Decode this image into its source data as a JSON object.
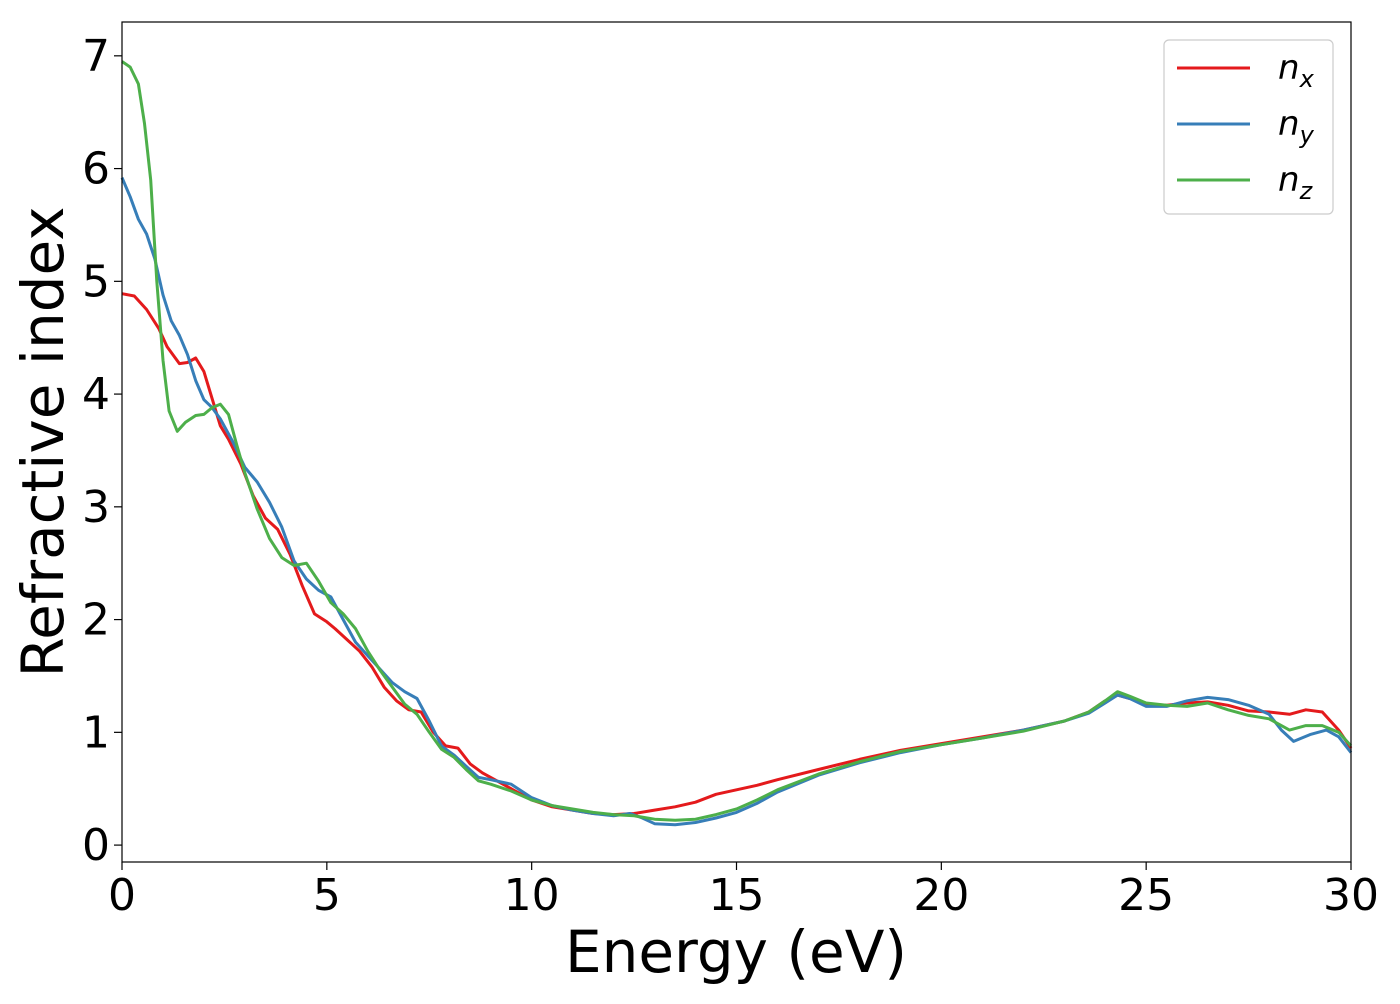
{
  "chart_data": {
    "type": "line",
    "xlabel": "Energy (eV)",
    "ylabel": "Refractive index",
    "xlim": [
      0,
      30
    ],
    "ylim": [
      -0.15,
      7.3
    ],
    "x_ticks": [
      0,
      5,
      10,
      15,
      20,
      25,
      30
    ],
    "y_ticks": [
      0,
      1,
      2,
      3,
      4,
      5,
      6,
      7
    ],
    "x_tick_labels": [
      "0",
      "5",
      "10",
      "15",
      "20",
      "25",
      "30"
    ],
    "y_tick_labels": [
      "0",
      "1",
      "2",
      "3",
      "4",
      "5",
      "6",
      "7"
    ],
    "grid": false,
    "legend_position": "top-right",
    "series": [
      {
        "name": "n_x",
        "label_main": "n",
        "label_sub": "x",
        "color": "#e41a1c",
        "points": [
          [
            0,
            4.89
          ],
          [
            0.3,
            4.87
          ],
          [
            0.6,
            4.75
          ],
          [
            0.9,
            4.58
          ],
          [
            1.1,
            4.42
          ],
          [
            1.4,
            4.27
          ],
          [
            1.6,
            4.28
          ],
          [
            1.8,
            4.32
          ],
          [
            2.0,
            4.2
          ],
          [
            2.2,
            3.96
          ],
          [
            2.4,
            3.72
          ],
          [
            2.6,
            3.6
          ],
          [
            2.9,
            3.38
          ],
          [
            3.2,
            3.1
          ],
          [
            3.5,
            2.9
          ],
          [
            3.8,
            2.8
          ],
          [
            4.1,
            2.58
          ],
          [
            4.4,
            2.3
          ],
          [
            4.7,
            2.05
          ],
          [
            5.0,
            1.98
          ],
          [
            5.2,
            1.92
          ],
          [
            5.5,
            1.82
          ],
          [
            5.8,
            1.72
          ],
          [
            6.1,
            1.58
          ],
          [
            6.4,
            1.4
          ],
          [
            6.7,
            1.28
          ],
          [
            7.0,
            1.2
          ],
          [
            7.3,
            1.18
          ],
          [
            7.6,
            1.0
          ],
          [
            7.9,
            0.88
          ],
          [
            8.2,
            0.86
          ],
          [
            8.5,
            0.72
          ],
          [
            8.8,
            0.64
          ],
          [
            9.2,
            0.56
          ],
          [
            9.6,
            0.48
          ],
          [
            10.0,
            0.4
          ],
          [
            10.5,
            0.34
          ],
          [
            11.0,
            0.31
          ],
          [
            11.5,
            0.28
          ],
          [
            12.0,
            0.27
          ],
          [
            12.5,
            0.28
          ],
          [
            13.0,
            0.31
          ],
          [
            13.5,
            0.34
          ],
          [
            14.0,
            0.38
          ],
          [
            14.5,
            0.45
          ],
          [
            15.0,
            0.49
          ],
          [
            15.5,
            0.53
          ],
          [
            16.0,
            0.58
          ],
          [
            17.0,
            0.67
          ],
          [
            18.0,
            0.76
          ],
          [
            19.0,
            0.84
          ],
          [
            20.0,
            0.9
          ],
          [
            21.0,
            0.96
          ],
          [
            22.0,
            1.02
          ],
          [
            23.0,
            1.1
          ],
          [
            23.6,
            1.18
          ],
          [
            24.0,
            1.28
          ],
          [
            24.3,
            1.33
          ],
          [
            24.6,
            1.3
          ],
          [
            25.0,
            1.25
          ],
          [
            25.5,
            1.24
          ],
          [
            26.0,
            1.26
          ],
          [
            26.5,
            1.27
          ],
          [
            27.0,
            1.24
          ],
          [
            27.5,
            1.19
          ],
          [
            28.0,
            1.18
          ],
          [
            28.5,
            1.16
          ],
          [
            28.9,
            1.2
          ],
          [
            29.3,
            1.18
          ],
          [
            29.7,
            1.02
          ],
          [
            30.0,
            0.86
          ]
        ]
      },
      {
        "name": "n_y",
        "label_main": "n",
        "label_sub": "y",
        "color": "#377eb8",
        "points": [
          [
            0,
            5.92
          ],
          [
            0.2,
            5.75
          ],
          [
            0.4,
            5.55
          ],
          [
            0.6,
            5.42
          ],
          [
            0.8,
            5.2
          ],
          [
            1.0,
            4.88
          ],
          [
            1.2,
            4.65
          ],
          [
            1.4,
            4.52
          ],
          [
            1.6,
            4.35
          ],
          [
            1.8,
            4.12
          ],
          [
            2.0,
            3.95
          ],
          [
            2.2,
            3.88
          ],
          [
            2.4,
            3.78
          ],
          [
            2.7,
            3.58
          ],
          [
            3.0,
            3.35
          ],
          [
            3.3,
            3.22
          ],
          [
            3.6,
            3.04
          ],
          [
            3.9,
            2.82
          ],
          [
            4.2,
            2.52
          ],
          [
            4.5,
            2.36
          ],
          [
            4.8,
            2.26
          ],
          [
            5.1,
            2.2
          ],
          [
            5.4,
            2.0
          ],
          [
            5.7,
            1.8
          ],
          [
            6.0,
            1.68
          ],
          [
            6.3,
            1.56
          ],
          [
            6.6,
            1.44
          ],
          [
            6.9,
            1.36
          ],
          [
            7.2,
            1.3
          ],
          [
            7.5,
            1.1
          ],
          [
            7.8,
            0.88
          ],
          [
            8.1,
            0.8
          ],
          [
            8.4,
            0.7
          ],
          [
            8.7,
            0.6
          ],
          [
            9.0,
            0.58
          ],
          [
            9.5,
            0.54
          ],
          [
            10.0,
            0.42
          ],
          [
            10.5,
            0.35
          ],
          [
            11.0,
            0.31
          ],
          [
            11.5,
            0.28
          ],
          [
            12.0,
            0.26
          ],
          [
            12.4,
            0.28
          ],
          [
            12.7,
            0.24
          ],
          [
            13.0,
            0.19
          ],
          [
            13.5,
            0.18
          ],
          [
            14.0,
            0.2
          ],
          [
            14.5,
            0.24
          ],
          [
            15.0,
            0.29
          ],
          [
            15.5,
            0.37
          ],
          [
            16.0,
            0.47
          ],
          [
            17.0,
            0.62
          ],
          [
            18.0,
            0.73
          ],
          [
            19.0,
            0.82
          ],
          [
            20.0,
            0.89
          ],
          [
            21.0,
            0.95
          ],
          [
            22.0,
            1.02
          ],
          [
            23.0,
            1.1
          ],
          [
            23.6,
            1.17
          ],
          [
            24.0,
            1.26
          ],
          [
            24.3,
            1.33
          ],
          [
            24.6,
            1.3
          ],
          [
            25.0,
            1.23
          ],
          [
            25.5,
            1.23
          ],
          [
            26.0,
            1.28
          ],
          [
            26.5,
            1.31
          ],
          [
            27.0,
            1.29
          ],
          [
            27.5,
            1.24
          ],
          [
            28.0,
            1.16
          ],
          [
            28.3,
            1.02
          ],
          [
            28.6,
            0.92
          ],
          [
            29.0,
            0.98
          ],
          [
            29.4,
            1.02
          ],
          [
            29.7,
            0.96
          ],
          [
            30.0,
            0.82
          ]
        ]
      },
      {
        "name": "n_z",
        "label_main": "n",
        "label_sub": "z",
        "color": "#4daf4a",
        "points": [
          [
            0,
            6.95
          ],
          [
            0.2,
            6.9
          ],
          [
            0.4,
            6.75
          ],
          [
            0.55,
            6.4
          ],
          [
            0.7,
            5.9
          ],
          [
            0.85,
            5.0
          ],
          [
            1.0,
            4.3
          ],
          [
            1.15,
            3.85
          ],
          [
            1.35,
            3.67
          ],
          [
            1.55,
            3.75
          ],
          [
            1.8,
            3.81
          ],
          [
            2.0,
            3.82
          ],
          [
            2.2,
            3.88
          ],
          [
            2.4,
            3.91
          ],
          [
            2.6,
            3.82
          ],
          [
            2.8,
            3.55
          ],
          [
            3.0,
            3.3
          ],
          [
            3.3,
            2.98
          ],
          [
            3.6,
            2.72
          ],
          [
            3.9,
            2.55
          ],
          [
            4.2,
            2.48
          ],
          [
            4.5,
            2.5
          ],
          [
            4.8,
            2.34
          ],
          [
            5.1,
            2.15
          ],
          [
            5.4,
            2.05
          ],
          [
            5.7,
            1.92
          ],
          [
            6.0,
            1.72
          ],
          [
            6.3,
            1.55
          ],
          [
            6.6,
            1.4
          ],
          [
            6.9,
            1.25
          ],
          [
            7.2,
            1.16
          ],
          [
            7.5,
            1.0
          ],
          [
            7.8,
            0.85
          ],
          [
            8.1,
            0.78
          ],
          [
            8.4,
            0.67
          ],
          [
            8.7,
            0.57
          ],
          [
            9.0,
            0.54
          ],
          [
            9.5,
            0.48
          ],
          [
            10.0,
            0.4
          ],
          [
            10.5,
            0.35
          ],
          [
            11.0,
            0.32
          ],
          [
            11.5,
            0.29
          ],
          [
            12.0,
            0.27
          ],
          [
            12.5,
            0.26
          ],
          [
            13.0,
            0.23
          ],
          [
            13.5,
            0.22
          ],
          [
            14.0,
            0.23
          ],
          [
            14.5,
            0.27
          ],
          [
            15.0,
            0.32
          ],
          [
            15.5,
            0.4
          ],
          [
            16.0,
            0.49
          ],
          [
            17.0,
            0.63
          ],
          [
            18.0,
            0.74
          ],
          [
            19.0,
            0.83
          ],
          [
            20.0,
            0.89
          ],
          [
            21.0,
            0.95
          ],
          [
            22.0,
            1.01
          ],
          [
            23.0,
            1.1
          ],
          [
            23.6,
            1.18
          ],
          [
            24.0,
            1.28
          ],
          [
            24.3,
            1.36
          ],
          [
            24.6,
            1.32
          ],
          [
            25.0,
            1.26
          ],
          [
            25.5,
            1.24
          ],
          [
            26.0,
            1.23
          ],
          [
            26.5,
            1.26
          ],
          [
            27.0,
            1.2
          ],
          [
            27.5,
            1.15
          ],
          [
            28.0,
            1.12
          ],
          [
            28.5,
            1.02
          ],
          [
            28.9,
            1.06
          ],
          [
            29.3,
            1.06
          ],
          [
            29.7,
            1.0
          ],
          [
            30.0,
            0.88
          ]
        ]
      }
    ]
  }
}
